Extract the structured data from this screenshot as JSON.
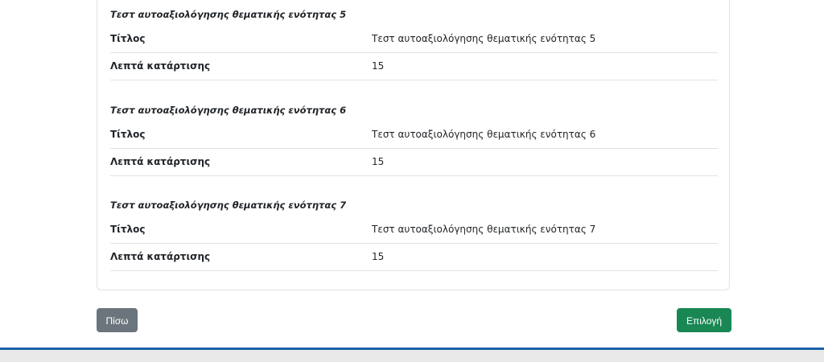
{
  "sections": [
    {
      "heading": "Τεστ αυτοαξιολόγησης θεματικής ενότητας 5",
      "title_label": "Τίτλος",
      "title_value": "Τεστ αυτοαξιολόγησης θεματικής ενότητας 5",
      "minutes_label": "Λεπτά κατάρτισης",
      "minutes_value": "15"
    },
    {
      "heading": "Τεστ αυτοαξιολόγησης θεματικής ενότητας 6",
      "title_label": "Τίτλος",
      "title_value": "Τεστ αυτοαξιολόγησης θεματικής ενότητας 6",
      "minutes_label": "Λεπτά κατάρτισης",
      "minutes_value": "15"
    },
    {
      "heading": "Τεστ αυτοαξιολόγησης θεματικής ενότητας 7",
      "title_label": "Τίτλος",
      "title_value": "Τεστ αυτοαξιολόγησης θεματικής ενότητας 7",
      "minutes_label": "Λεπτά κατάρτισης",
      "minutes_value": "15"
    }
  ],
  "buttons": {
    "back": "Πίσω",
    "select": "Επιλογή"
  },
  "colors": {
    "back": "#6c757d",
    "select": "#198754",
    "footer_border": "#1a5fa8"
  }
}
